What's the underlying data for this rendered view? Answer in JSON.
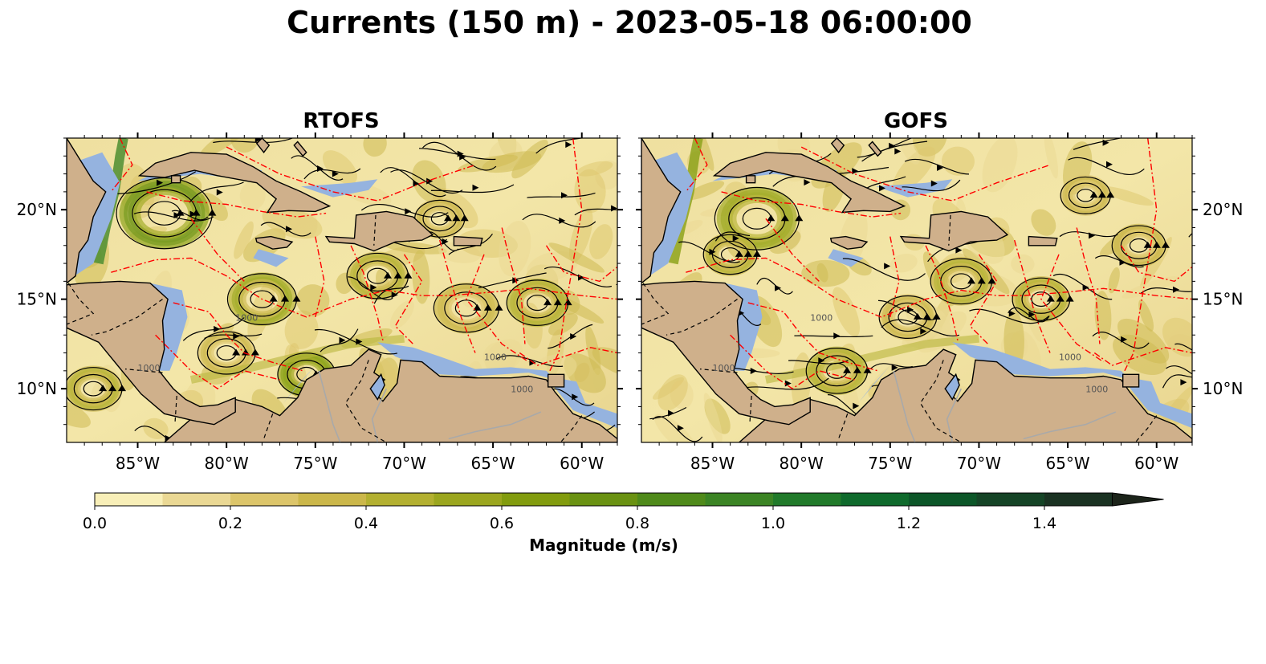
{
  "title": "Currents (150 m) - 2023-05-18 06:00:00",
  "panels": [
    {
      "name": "RTOFS",
      "label": "RTOFS"
    },
    {
      "name": "GOFS",
      "label": "GOFS"
    }
  ],
  "map_extent": {
    "lon": [
      -89,
      -58
    ],
    "lat": [
      7,
      24
    ]
  },
  "lon_ticks": [
    {
      "value": -85,
      "label": "85°W"
    },
    {
      "value": -80,
      "label": "80°W"
    },
    {
      "value": -75,
      "label": "75°W"
    },
    {
      "value": -70,
      "label": "70°W"
    },
    {
      "value": -65,
      "label": "65°W"
    },
    {
      "value": -60,
      "label": "60°W"
    }
  ],
  "lat_ticks": [
    {
      "value": 10,
      "label": "10°N"
    },
    {
      "value": 15,
      "label": "15°N"
    },
    {
      "value": 20,
      "label": "20°N"
    }
  ],
  "contour_label": "1000",
  "colorbar": {
    "label": "Magnitude (m/s)",
    "min": 0.0,
    "max": 1.5,
    "step": 0.1,
    "extend": "max",
    "tick_labels": [
      "0.0",
      "0.2",
      "0.4",
      "0.6",
      "0.8",
      "1.0",
      "1.2",
      "1.4"
    ],
    "colors": [
      "#f8efb8",
      "#ead894",
      "#dcc56a",
      "#cbb74a",
      "#b3b030",
      "#9ba61e",
      "#829c0e",
      "#6a9212",
      "#4f8a1a",
      "#3b8424",
      "#217a2a",
      "#0f6a2c",
      "#0c5628",
      "#154426",
      "#1a3222",
      "#1c241a"
    ]
  },
  "colors": {
    "land": "#cfb08b",
    "shelf_water": "#95b3df",
    "eez_lines": "#ff0000",
    "rivers": "#a9a9a9",
    "streamlines": "#000000"
  }
}
